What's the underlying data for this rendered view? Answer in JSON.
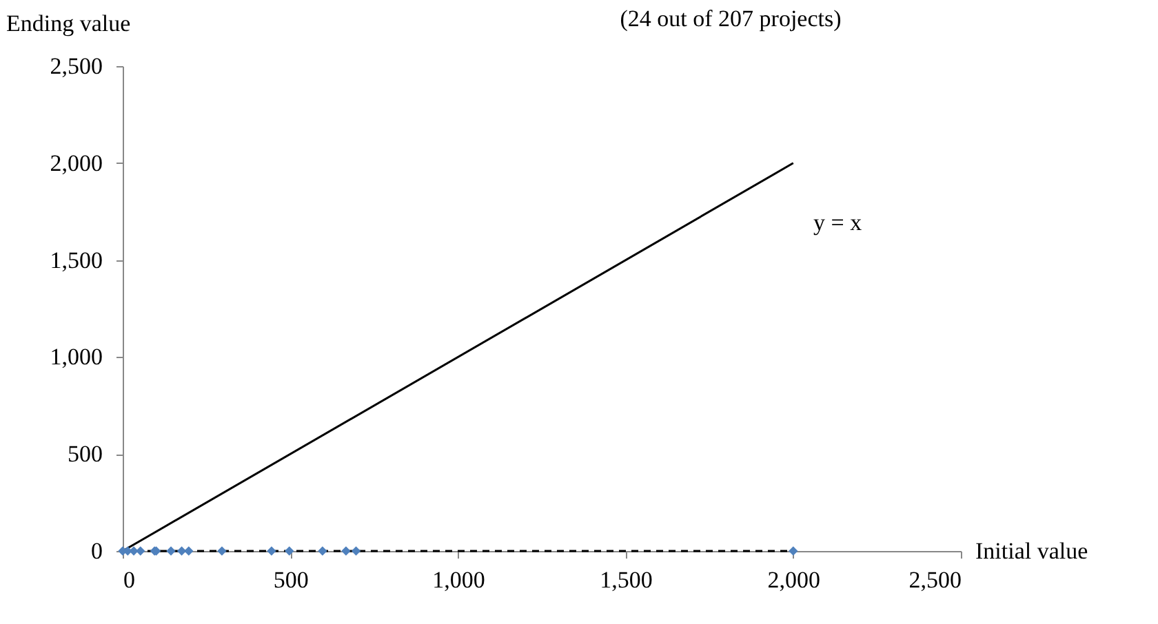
{
  "chart_data": {
    "type": "scatter",
    "title": "(24 out of 207 projects)",
    "xlabel": "Initial value",
    "ylabel": "Ending value",
    "xlim": [
      0,
      2500
    ],
    "ylim": [
      0,
      2500
    ],
    "xticks": [
      {
        "value": 0,
        "label": "0"
      },
      {
        "value": 500,
        "label": "500"
      },
      {
        "value": 1000,
        "label": "1,000"
      },
      {
        "value": 1500,
        "label": "1,500"
      },
      {
        "value": 2000,
        "label": "2,000"
      },
      {
        "value": 2500,
        "label": "2,500"
      }
    ],
    "yticks": [
      {
        "value": 0,
        "label": "0"
      },
      {
        "value": 500,
        "label": "500"
      },
      {
        "value": 1000,
        "label": "1,000"
      },
      {
        "value": 1500,
        "label": "1,500"
      },
      {
        "value": 2000,
        "label": "2,000"
      },
      {
        "value": 2500,
        "label": "2,500"
      }
    ],
    "grid": false,
    "series": [
      {
        "type": "line",
        "color": "#000000",
        "line_style": "dashed",
        "x": [
          0,
          2000
        ],
        "values": [
          0,
          0
        ]
      },
      {
        "type": "line",
        "color": "#000000",
        "line_style": "solid",
        "x": [
          0,
          2000
        ],
        "values": [
          0,
          2000
        ]
      },
      {
        "color": "#4f81bd",
        "marker": "diamond",
        "x": [
          0,
          15,
          33,
          53,
          95,
          100,
          144,
          176,
          197,
          296,
          444,
          497,
          596,
          666,
          696,
          2000
        ],
        "values": [
          0,
          0,
          0,
          0,
          0,
          0,
          0,
          0,
          0,
          0,
          0,
          0,
          0,
          0,
          0,
          0
        ]
      }
    ],
    "annotations": [
      "y = x"
    ]
  }
}
